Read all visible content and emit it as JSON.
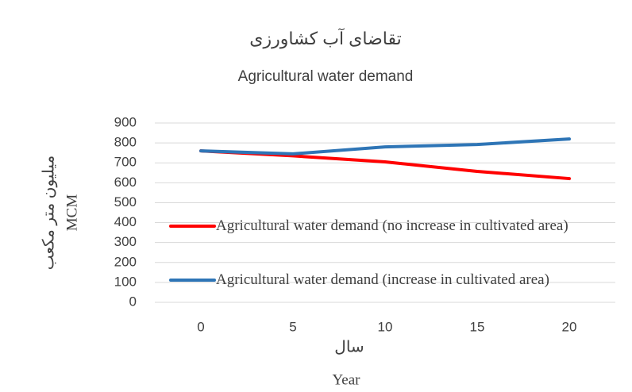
{
  "chart_data": {
    "type": "line",
    "title": "تقاضای آب کشاورزی",
    "subtitle": "Agricultural water demand",
    "y_label": [
      "میلیون متر مکعب",
      "MCM"
    ],
    "x_label": [
      "سال",
      "Year"
    ],
    "categories": [
      "0",
      "5",
      "10",
      "15",
      "20"
    ],
    "series": [
      {
        "name": "Agricultural water demand (no increase in cultivated area)",
        "color": "#ff0000",
        "values": [
          760,
          735,
          705,
          657,
          621
        ]
      },
      {
        "name": "Agricultural water demand (increase in cultivated area)",
        "color": "#2e75b6",
        "values": [
          760,
          745,
          780,
          792,
          820
        ]
      }
    ],
    "ylim": [
      0,
      900
    ],
    "yticks": [
      0,
      100,
      200,
      300,
      400,
      500,
      600,
      700,
      800,
      900
    ],
    "grid": true,
    "legend": "left"
  }
}
